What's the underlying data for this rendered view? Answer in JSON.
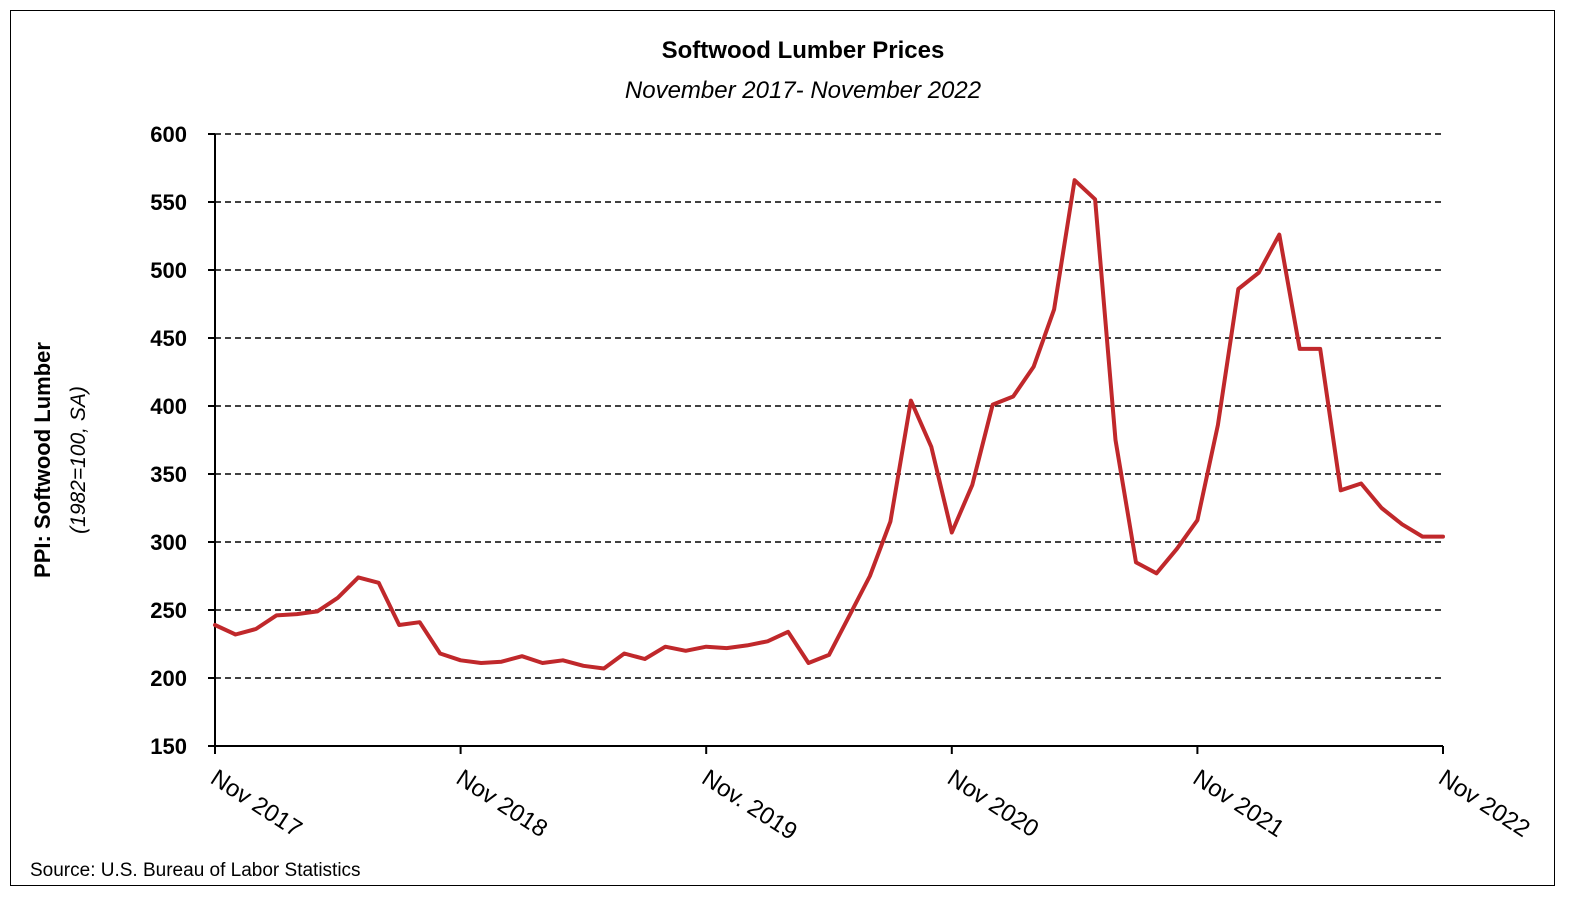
{
  "chart_data": {
    "type": "line",
    "title": "Softwood Lumber Prices",
    "subtitle": "November 2017- November 2022",
    "ylabel": "PPI: Softwood Lumber",
    "ylabel_note": "(1982=100, SA)",
    "source": "Source: U.S. Bureau of Labor Statistics",
    "ylim": [
      150,
      600
    ],
    "yticks": [
      150,
      200,
      250,
      300,
      350,
      400,
      450,
      500,
      550,
      600
    ],
    "grid": "horizontal dashed",
    "line_color": "#C0282B",
    "x_tick_labels": [
      {
        "index": 0,
        "label": "Nov 2017"
      },
      {
        "index": 12,
        "label": "Nov 2018"
      },
      {
        "index": 24,
        "label": "Nov. 2019"
      },
      {
        "index": 36,
        "label": "Nov 2020"
      },
      {
        "index": 48,
        "label": "Nov 2021"
      },
      {
        "index": 60,
        "label": "Nov 2022"
      }
    ],
    "values": [
      239,
      232,
      236,
      246,
      247,
      249,
      259,
      274,
      270,
      239,
      241,
      218,
      213,
      211,
      212,
      216,
      211,
      213,
      209,
      207,
      218,
      214,
      223,
      220,
      223,
      222,
      224,
      227,
      234,
      211,
      217,
      246,
      275,
      315,
      404,
      370,
      307,
      342,
      401,
      407,
      429,
      471,
      566,
      552,
      375,
      285,
      277,
      295,
      316,
      386,
      486,
      498,
      526,
      442,
      442,
      338,
      343,
      325,
      313,
      304,
      304
    ]
  }
}
